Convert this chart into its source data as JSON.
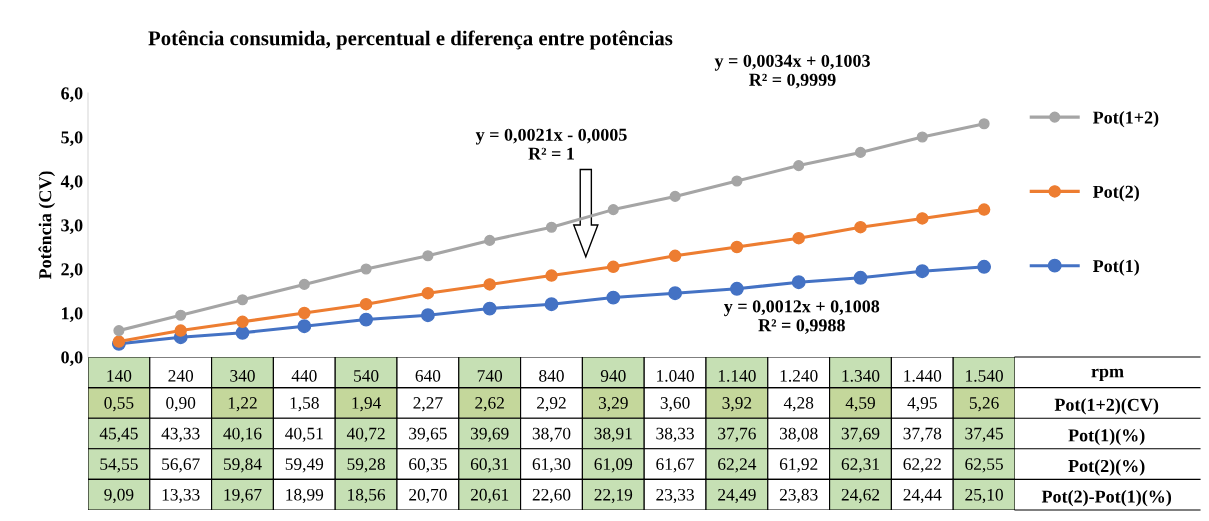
{
  "chart_data": [
    {
      "type": "line",
      "title": "Potência consumida, percentual e diferença entre potências",
      "ylabel": "Potência (CV)",
      "xlabel": "rpm",
      "categories": [
        "140",
        "240",
        "340",
        "440",
        "540",
        "640",
        "740",
        "840",
        "940",
        "1.040",
        "1.140",
        "1.240",
        "1.340",
        "1.440",
        "1.540"
      ],
      "series": [
        {
          "name": "Pot(1+2)",
          "color": "#a5a5a5",
          "values": [
            0.6,
            0.95,
            1.3,
            1.65,
            2.0,
            2.3,
            2.65,
            2.95,
            3.35,
            3.65,
            4.0,
            4.35,
            4.65,
            5.0,
            5.3
          ]
        },
        {
          "name": "Pot(2)",
          "color": "#ed7d31",
          "values": [
            0.35,
            0.6,
            0.8,
            1.0,
            1.2,
            1.45,
            1.65,
            1.85,
            2.05,
            2.3,
            2.5,
            2.7,
            2.95,
            3.15,
            3.35
          ]
        },
        {
          "name": "Pot(1)",
          "color": "#4472c4",
          "values": [
            0.3,
            0.45,
            0.55,
            0.7,
            0.85,
            0.95,
            1.1,
            1.2,
            1.35,
            1.45,
            1.55,
            1.7,
            1.8,
            1.95,
            2.05
          ]
        }
      ],
      "ylim": [
        0,
        6
      ],
      "yticks": [
        {
          "value": 0,
          "label": "0,0"
        },
        {
          "value": 1,
          "label": "1,0"
        },
        {
          "value": 2,
          "label": "2,0"
        },
        {
          "value": 3,
          "label": "3,0"
        },
        {
          "value": 4,
          "label": "4,0"
        },
        {
          "value": 5,
          "label": "5,0"
        },
        {
          "value": 6,
          "label": "6,0"
        }
      ],
      "annotations": [
        "y = 0,0034x + 0,1003\nR² = 0,9999",
        "y = 0,0021x - 0,0005\nR² = 1",
        "y = 0,0012x + 0,1008\nR² = 0,9988"
      ],
      "grid": false,
      "legend": "right",
      "marker": "circle",
      "line_style": "solid"
    },
    {
      "type": "other",
      "y2_categories": [
        "Pot(1+2)(CV)",
        "Pot(1)(%)",
        "Pot(2)(%)",
        "Pot(2)-Pot(1)(%)"
      ],
      "cells": [
        [
          "0,55",
          "0,90",
          "1,22",
          "1,58",
          "1,94",
          "2,27",
          "2,62",
          "2,92",
          "3,29",
          "3,60",
          "3,92",
          "4,28",
          "4,59",
          "4,95",
          "5,26"
        ],
        [
          "45,45",
          "43,33",
          "40,16",
          "40,51",
          "40,72",
          "39,65",
          "39,69",
          "38,70",
          "38,91",
          "38,33",
          "37,76",
          "38,08",
          "37,69",
          "37,78",
          "37,45"
        ],
        [
          "54,55",
          "56,67",
          "59,84",
          "59,49",
          "59,28",
          "60,35",
          "60,31",
          "61,30",
          "61,09",
          "61,67",
          "62,24",
          "61,92",
          "62,31",
          "62,22",
          "62,55"
        ],
        [
          "9,09",
          "13,33",
          "19,67",
          "18,99",
          "18,56",
          "20,70",
          "20,61",
          "22,60",
          "22,19",
          "23,33",
          "24,49",
          "23,83",
          "24,62",
          "24,44",
          "25,10"
        ]
      ],
      "colors": [
        [
          "#c4d79b",
          "#ffffff",
          "#c4d79b",
          "#ffffff",
          "#c4d79b",
          "#ffffff",
          "#c4d79b",
          "#ffffff",
          "#c4d79b",
          "#ffffff",
          "#c4d79b",
          "#ffffff",
          "#c4d79b",
          "#ffffff",
          "#c4d79b"
        ],
        [
          "#c6e0b4",
          "#ffffff",
          "#c6e0b4",
          "#ffffff",
          "#c6e0b4",
          "#ffffff",
          "#c6e0b4",
          "#ffffff",
          "#c6e0b4",
          "#ffffff",
          "#c6e0b4",
          "#ffffff",
          "#c6e0b4",
          "#ffffff",
          "#c6e0b4"
        ],
        [
          "#c6e0b4",
          "#ffffff",
          "#c6e0b4",
          "#ffffff",
          "#c6e0b4",
          "#ffffff",
          "#c6e0b4",
          "#ffffff",
          "#c6e0b4",
          "#ffffff",
          "#c6e0b4",
          "#ffffff",
          "#c6e0b4",
          "#ffffff",
          "#c6e0b4"
        ],
        [
          "#c6e0b4",
          "#ffffff",
          "#c6e0b4",
          "#ffffff",
          "#c6e0b4",
          "#ffffff",
          "#c6e0b4",
          "#ffffff",
          "#c6e0b4",
          "#ffffff",
          "#c6e0b4",
          "#ffffff",
          "#c6e0b4",
          "#ffffff",
          "#c6e0b4"
        ]
      ]
    }
  ]
}
